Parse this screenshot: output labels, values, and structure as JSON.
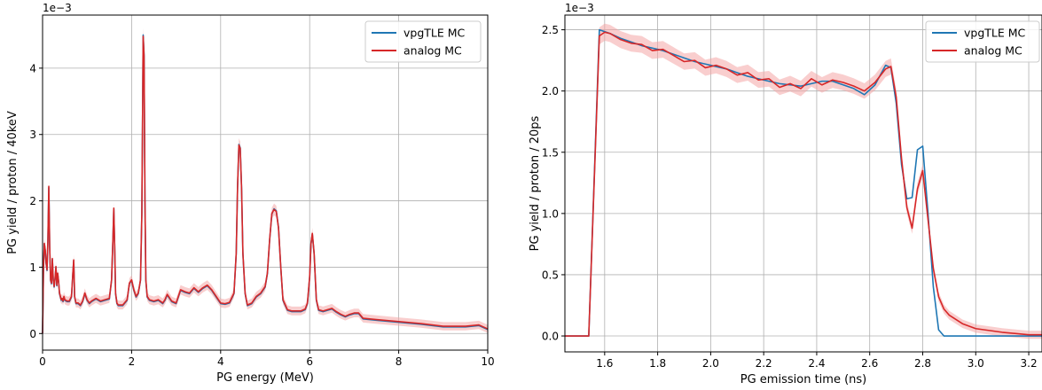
{
  "chart_data": [
    {
      "type": "line",
      "title": "",
      "xlabel": "PG energy (MeV)",
      "ylabel": "PG yield / proton / 40keV",
      "y_multiplier_label": "1e−3",
      "xlim": [
        0,
        10
      ],
      "ylim": [
        -0.25,
        4.8
      ],
      "xticks": [
        0,
        2,
        4,
        6,
        8,
        10
      ],
      "xtick_labels": [
        "0",
        "2",
        "4",
        "6",
        "8",
        "10"
      ],
      "yticks": [
        0,
        1,
        2,
        3,
        4
      ],
      "ytick_labels": [
        "0",
        "1",
        "2",
        "3",
        "4"
      ],
      "grid": true,
      "legend_position": "top-right",
      "series": [
        {
          "name": "vpgTLE MC",
          "color": "#1f77b4",
          "x": [
            0,
            0.02,
            0.04,
            0.06,
            0.08,
            0.1,
            0.12,
            0.14,
            0.16,
            0.18,
            0.2,
            0.22,
            0.24,
            0.26,
            0.28,
            0.3,
            0.32,
            0.34,
            0.36,
            0.38,
            0.4,
            0.42,
            0.44,
            0.46,
            0.48,
            0.5,
            0.55,
            0.6,
            0.65,
            0.68,
            0.7,
            0.72,
            0.75,
            0.8,
            0.85,
            0.9,
            0.95,
            1.0,
            1.05,
            1.1,
            1.2,
            1.3,
            1.4,
            1.5,
            1.55,
            1.58,
            1.6,
            1.62,
            1.64,
            1.67,
            1.7,
            1.8,
            1.9,
            1.95,
            2.0,
            2.05,
            2.1,
            2.15,
            2.2,
            2.23,
            2.26,
            2.28,
            2.3,
            2.32,
            2.35,
            2.4,
            2.5,
            2.6,
            2.7,
            2.75,
            2.8,
            2.9,
            3.0,
            3.05,
            3.1,
            3.2,
            3.3,
            3.4,
            3.5,
            3.6,
            3.7,
            3.8,
            3.9,
            4.0,
            4.1,
            4.2,
            4.3,
            4.35,
            4.38,
            4.41,
            4.44,
            4.47,
            4.5,
            4.55,
            4.6,
            4.7,
            4.8,
            4.9,
            5.0,
            5.05,
            5.1,
            5.15,
            5.2,
            5.25,
            5.3,
            5.35,
            5.4,
            5.5,
            5.6,
            5.7,
            5.8,
            5.9,
            5.95,
            6.0,
            6.03,
            6.06,
            6.1,
            6.15,
            6.2,
            6.3,
            6.4,
            6.5,
            6.6,
            6.7,
            6.8,
            6.9,
            7.0,
            7.1,
            7.2,
            7.5,
            8.0,
            8.5,
            9.0,
            9.5,
            9.8,
            10.0
          ],
          "y": [
            0,
            0.95,
            1.35,
            1.25,
            1.05,
            0.95,
            1.4,
            2.2,
            1.3,
            0.8,
            0.75,
            1.12,
            0.8,
            0.7,
            0.82,
            1.0,
            0.72,
            0.9,
            0.78,
            0.6,
            0.55,
            0.5,
            0.52,
            0.48,
            0.55,
            0.5,
            0.48,
            0.48,
            0.55,
            0.9,
            1.1,
            0.55,
            0.45,
            0.45,
            0.42,
            0.48,
            0.6,
            0.5,
            0.45,
            0.48,
            0.52,
            0.48,
            0.5,
            0.52,
            0.8,
            1.4,
            1.88,
            1.3,
            0.6,
            0.45,
            0.42,
            0.42,
            0.5,
            0.75,
            0.8,
            0.65,
            0.55,
            0.6,
            0.8,
            1.8,
            4.5,
            4.2,
            2.0,
            0.8,
            0.55,
            0.5,
            0.48,
            0.5,
            0.45,
            0.5,
            0.58,
            0.48,
            0.45,
            0.55,
            0.65,
            0.62,
            0.6,
            0.68,
            0.62,
            0.68,
            0.72,
            0.65,
            0.55,
            0.45,
            0.44,
            0.46,
            0.6,
            1.2,
            2.2,
            2.85,
            2.8,
            2.2,
            1.2,
            0.6,
            0.42,
            0.45,
            0.55,
            0.6,
            0.7,
            0.9,
            1.4,
            1.8,
            1.88,
            1.85,
            1.6,
            1.0,
            0.5,
            0.35,
            0.33,
            0.33,
            0.33,
            0.36,
            0.45,
            0.85,
            1.35,
            1.5,
            1.2,
            0.5,
            0.35,
            0.33,
            0.35,
            0.37,
            0.32,
            0.28,
            0.25,
            0.28,
            0.3,
            0.3,
            0.22,
            0.2,
            0.17,
            0.14,
            0.1,
            0.1,
            0.12,
            0.06
          ]
        },
        {
          "name": "analog MC",
          "color": "#d62728",
          "x": [
            0,
            0.02,
            0.04,
            0.06,
            0.08,
            0.1,
            0.12,
            0.14,
            0.16,
            0.18,
            0.2,
            0.22,
            0.24,
            0.26,
            0.28,
            0.3,
            0.32,
            0.34,
            0.36,
            0.38,
            0.4,
            0.42,
            0.44,
            0.46,
            0.48,
            0.5,
            0.55,
            0.6,
            0.65,
            0.68,
            0.7,
            0.72,
            0.75,
            0.8,
            0.85,
            0.9,
            0.95,
            1.0,
            1.05,
            1.1,
            1.2,
            1.3,
            1.4,
            1.5,
            1.55,
            1.58,
            1.6,
            1.62,
            1.64,
            1.67,
            1.7,
            1.8,
            1.9,
            1.95,
            2.0,
            2.05,
            2.1,
            2.15,
            2.2,
            2.23,
            2.26,
            2.28,
            2.3,
            2.32,
            2.35,
            2.4,
            2.5,
            2.6,
            2.7,
            2.75,
            2.8,
            2.9,
            3.0,
            3.05,
            3.1,
            3.2,
            3.3,
            3.4,
            3.5,
            3.6,
            3.7,
            3.8,
            3.9,
            4.0,
            4.1,
            4.2,
            4.3,
            4.35,
            4.38,
            4.41,
            4.44,
            4.47,
            4.5,
            4.55,
            4.6,
            4.7,
            4.8,
            4.9,
            5.0,
            5.05,
            5.1,
            5.15,
            5.2,
            5.25,
            5.3,
            5.35,
            5.4,
            5.5,
            5.6,
            5.7,
            5.8,
            5.9,
            5.95,
            6.0,
            6.03,
            6.06,
            6.1,
            6.15,
            6.2,
            6.3,
            6.4,
            6.5,
            6.6,
            6.7,
            6.8,
            6.9,
            7.0,
            7.1,
            7.2,
            7.5,
            8.0,
            8.5,
            9.0,
            9.5,
            9.8,
            10.0
          ],
          "y": [
            0,
            0.97,
            1.36,
            1.26,
            1.06,
            0.96,
            1.42,
            2.22,
            1.31,
            0.81,
            0.76,
            1.13,
            0.81,
            0.71,
            0.83,
            1.01,
            0.73,
            0.91,
            0.79,
            0.61,
            0.56,
            0.51,
            0.53,
            0.49,
            0.56,
            0.51,
            0.49,
            0.49,
            0.56,
            0.91,
            1.11,
            0.56,
            0.46,
            0.46,
            0.43,
            0.49,
            0.61,
            0.51,
            0.46,
            0.49,
            0.53,
            0.49,
            0.51,
            0.53,
            0.81,
            1.41,
            1.89,
            1.31,
            0.61,
            0.46,
            0.43,
            0.43,
            0.51,
            0.76,
            0.81,
            0.66,
            0.56,
            0.61,
            0.81,
            1.81,
            4.48,
            4.18,
            1.99,
            0.81,
            0.56,
            0.51,
            0.49,
            0.51,
            0.46,
            0.51,
            0.59,
            0.49,
            0.46,
            0.56,
            0.66,
            0.63,
            0.61,
            0.69,
            0.63,
            0.69,
            0.73,
            0.66,
            0.56,
            0.46,
            0.45,
            0.47,
            0.61,
            1.21,
            2.21,
            2.84,
            2.79,
            2.19,
            1.21,
            0.61,
            0.43,
            0.46,
            0.56,
            0.61,
            0.71,
            0.91,
            1.41,
            1.81,
            1.87,
            1.84,
            1.59,
            1.01,
            0.51,
            0.36,
            0.34,
            0.34,
            0.34,
            0.37,
            0.46,
            0.86,
            1.36,
            1.51,
            1.21,
            0.51,
            0.36,
            0.34,
            0.36,
            0.38,
            0.33,
            0.29,
            0.26,
            0.29,
            0.31,
            0.31,
            0.23,
            0.21,
            0.18,
            0.15,
            0.11,
            0.11,
            0.13,
            0.07
          ]
        }
      ]
    },
    {
      "type": "line",
      "title": "",
      "xlabel": "PG emission time (ns)",
      "ylabel": "PG yield / proton / 20ps",
      "y_multiplier_label": "1e−3",
      "xlim": [
        1.45,
        3.25
      ],
      "ylim": [
        -0.13,
        2.62
      ],
      "xticks": [
        1.6,
        1.8,
        2.0,
        2.2,
        2.4,
        2.6,
        2.8,
        3.0,
        3.2
      ],
      "xtick_labels": [
        "1.6",
        "1.8",
        "2.0",
        "2.2",
        "2.4",
        "2.6",
        "2.8",
        "3.0",
        "3.2"
      ],
      "yticks": [
        0.0,
        0.5,
        1.0,
        1.5,
        2.0,
        2.5
      ],
      "ytick_labels": [
        "0.0",
        "0.5",
        "1.0",
        "1.5",
        "2.0",
        "2.5"
      ],
      "grid": true,
      "legend_position": "top-right",
      "series": [
        {
          "name": "vpgTLE MC",
          "color": "#1f77b4",
          "x": [
            1.45,
            1.54,
            1.58,
            1.62,
            1.66,
            1.7,
            1.74,
            1.78,
            1.82,
            1.86,
            1.9,
            1.94,
            1.98,
            2.02,
            2.06,
            2.1,
            2.14,
            2.18,
            2.22,
            2.26,
            2.3,
            2.34,
            2.38,
            2.42,
            2.46,
            2.5,
            2.54,
            2.58,
            2.62,
            2.66,
            2.68,
            2.7,
            2.72,
            2.74,
            2.76,
            2.78,
            2.8,
            2.82,
            2.84,
            2.86,
            2.88,
            2.9,
            3.0,
            3.1,
            3.25
          ],
          "y": [
            0,
            0,
            2.5,
            2.47,
            2.43,
            2.4,
            2.37,
            2.35,
            2.33,
            2.3,
            2.27,
            2.24,
            2.22,
            2.2,
            2.18,
            2.15,
            2.12,
            2.1,
            2.08,
            2.06,
            2.05,
            2.04,
            2.06,
            2.08,
            2.08,
            2.05,
            2.02,
            1.97,
            2.05,
            2.21,
            2.19,
            1.9,
            1.4,
            1.12,
            1.13,
            1.52,
            1.55,
            1.0,
            0.4,
            0.05,
            0.0,
            0.0,
            0.0,
            0.0,
            0.0
          ]
        },
        {
          "name": "analog MC",
          "color": "#d62728",
          "x": [
            1.45,
            1.54,
            1.58,
            1.6,
            1.62,
            1.66,
            1.7,
            1.74,
            1.78,
            1.82,
            1.86,
            1.9,
            1.94,
            1.98,
            2.02,
            2.06,
            2.1,
            2.14,
            2.18,
            2.22,
            2.26,
            2.3,
            2.34,
            2.38,
            2.42,
            2.46,
            2.5,
            2.54,
            2.58,
            2.62,
            2.66,
            2.68,
            2.7,
            2.72,
            2.74,
            2.76,
            2.78,
            2.8,
            2.82,
            2.84,
            2.86,
            2.88,
            2.9,
            2.95,
            3.0,
            3.1,
            3.2,
            3.25
          ],
          "y": [
            0,
            0,
            2.45,
            2.48,
            2.47,
            2.42,
            2.39,
            2.38,
            2.33,
            2.34,
            2.29,
            2.24,
            2.25,
            2.19,
            2.21,
            2.18,
            2.13,
            2.15,
            2.09,
            2.1,
            2.03,
            2.06,
            2.02,
            2.1,
            2.05,
            2.09,
            2.07,
            2.04,
            2.0,
            2.07,
            2.18,
            2.2,
            1.95,
            1.45,
            1.05,
            0.88,
            1.2,
            1.35,
            0.95,
            0.55,
            0.32,
            0.22,
            0.17,
            0.1,
            0.06,
            0.03,
            0.01,
            0.01
          ]
        }
      ]
    }
  ]
}
